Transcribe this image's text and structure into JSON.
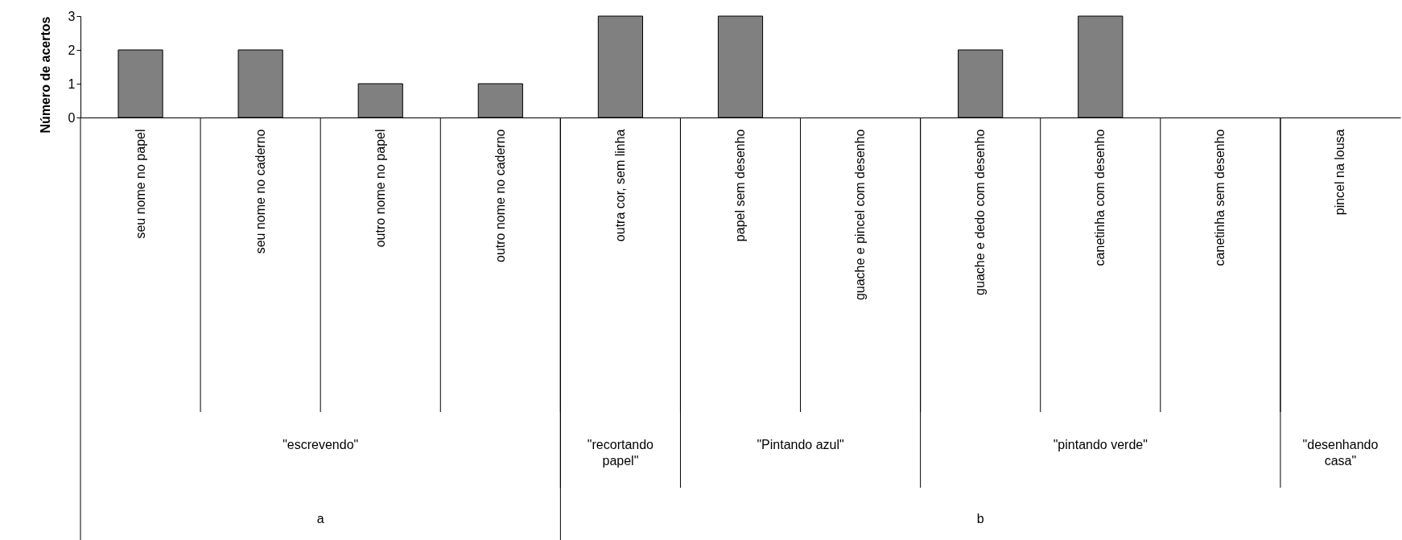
{
  "chart_data": {
    "type": "bar",
    "ylabel": "Número de acertos",
    "categories": [
      "seu nome no papel",
      "seu nome no caderno",
      "outro nome no papel",
      "outro nome no caderno",
      "outra cor, sem linha",
      "papel sem desenho",
      "guache e pincel com desenho",
      "guache e dedo com desenho",
      "canetinha com desenho",
      "canetinha sem desenho",
      "pincel na lousa"
    ],
    "values": [
      2,
      2,
      1,
      1,
      3,
      3,
      0,
      2,
      3,
      0,
      0
    ],
    "color": "#808080",
    "ylim": [
      0,
      3
    ],
    "yticks": [
      0,
      1,
      2,
      3
    ],
    "grid": false,
    "annotations": [
      "\"escrevendo\"",
      "\"recortando papel\"",
      "\"Pintando azul\"",
      "\"pintando verde\"",
      "\"desenhando casa\"",
      "a",
      "b"
    ]
  }
}
